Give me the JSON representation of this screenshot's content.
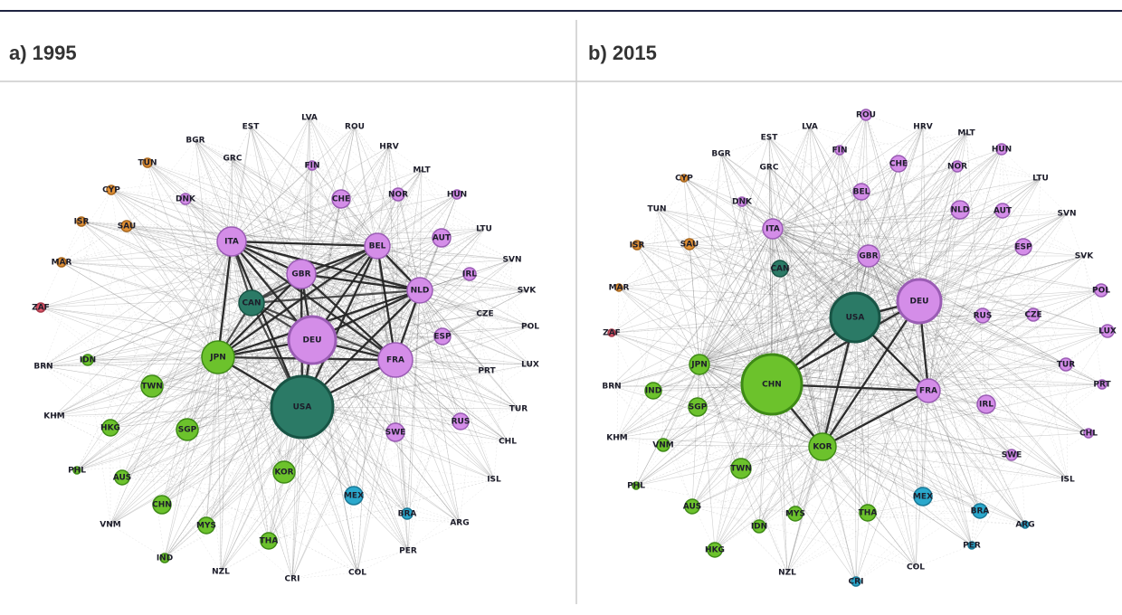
{
  "panels": [
    {
      "title": "a) 1995",
      "nodes": [
        "LVA",
        "EST",
        "ROU",
        "BGR",
        "GRC",
        "HRV",
        "TUN",
        "MLT",
        "FIN",
        "CYP",
        "DNK",
        "CHE",
        "NOR",
        "HUN",
        "ISR",
        "SAU",
        "ITA",
        "AUT",
        "LTU",
        "BEL",
        "SVN",
        "MAR",
        "GBR",
        "IRL",
        "NLD",
        "SVK",
        "CAN",
        "ZAF",
        "CZE",
        "POL",
        "DEU",
        "JPN",
        "FRA",
        "ESP",
        "LUX",
        "BRN",
        "IDN",
        "PRT",
        "TWN",
        "USA",
        "TUR",
        "KHM",
        "HKG",
        "SGP",
        "SWE",
        "RUS",
        "CHL",
        "PHL",
        "AUS",
        "KOR",
        "ISL",
        "MEX",
        "CHN",
        "MYS",
        "VNM",
        "BRA",
        "ARG",
        "THA",
        "PER",
        "IND",
        "NZL",
        "CRI",
        "COL"
      ]
    },
    {
      "title": "b) 2015",
      "nodes": [
        "LVA",
        "ROU",
        "HRV",
        "EST",
        "MLT",
        "BGR",
        "GRC",
        "FIN",
        "CHE",
        "NOR",
        "HUN",
        "CYP",
        "DNK",
        "BEL",
        "NLD",
        "AUT",
        "LTU",
        "SVN",
        "TUN",
        "ITA",
        "SAU",
        "ISR",
        "GBR",
        "ESP",
        "SVK",
        "MAR",
        "CAN",
        "DEU",
        "POL",
        "USA",
        "RUS",
        "CZE",
        "LUX",
        "ZAF",
        "JPN",
        "CHN",
        "TUR",
        "PRT",
        "BRN",
        "IND",
        "FRA",
        "IRL",
        "SGP",
        "KOR",
        "VNM",
        "KHM",
        "CHL",
        "TWN",
        "SWE",
        "PHL",
        "ISL",
        "AUS",
        "MEX",
        "BRA",
        "THA",
        "MYS",
        "IDN",
        "ARG",
        "HKG",
        "PER",
        "NZL",
        "COL",
        "CRI"
      ]
    }
  ]
}
